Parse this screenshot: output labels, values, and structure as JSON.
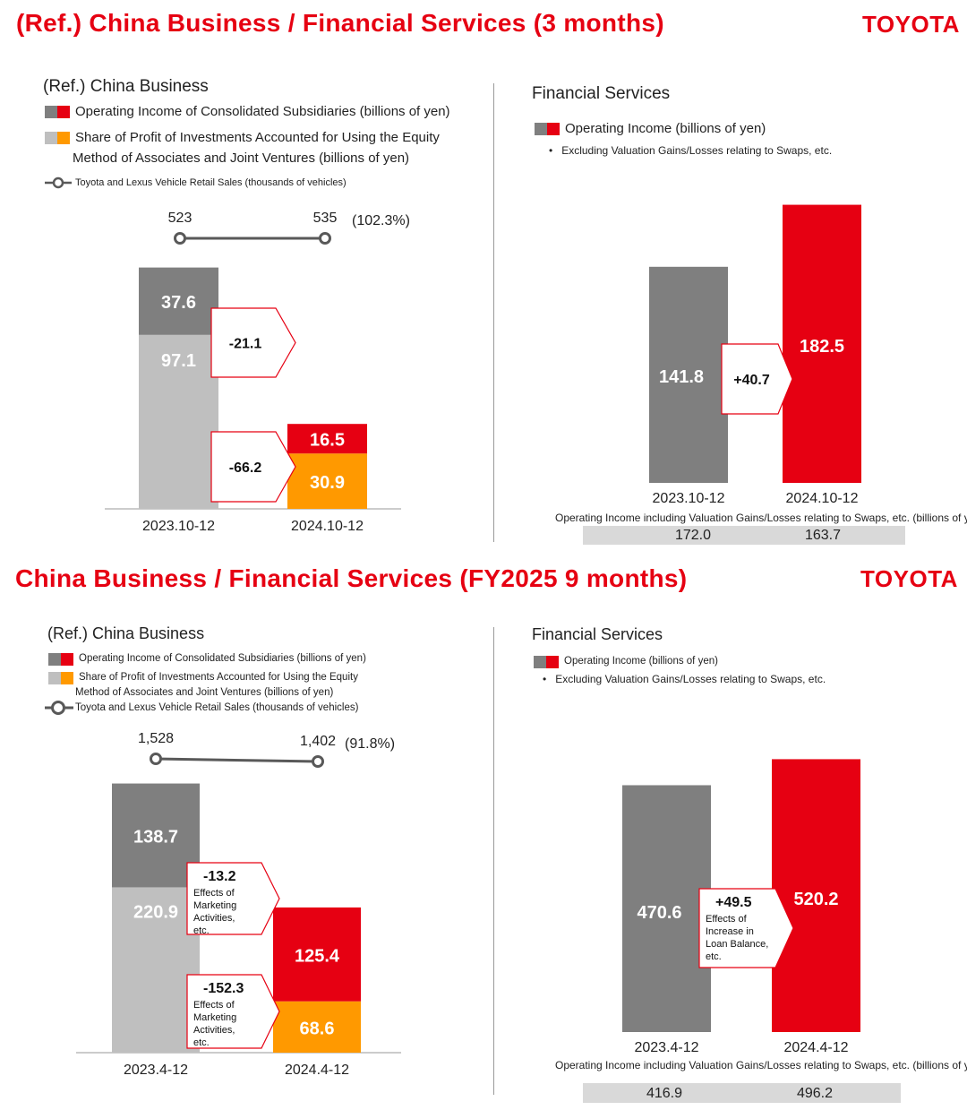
{
  "top": {
    "title": "(Ref.) China Business / Financial Services (3 months)",
    "brand": "TOYOTA",
    "china": {
      "title": "(Ref.) China Business",
      "legend": {
        "operating_income": "Operating Income of Consolidated Subsidiaries (billions of yen)",
        "equity_share_l1": "Share of Profit of Investments Accounted for Using the Equity",
        "equity_share_l2": "Method of Associates and Joint Ventures (billions of yen)",
        "retail_sales": "Toyota and Lexus Vehicle Retail Sales (thousands of vehicles)"
      }
    },
    "fs": {
      "title": "Financial Services",
      "legend": "Operating Income (billions of yen)",
      "bullet": "Excluding Valuation Gains/Losses relating to Swaps, etc.",
      "note": "Operating Income including Valuation Gains/Losses relating to Swaps, etc.  (billions of yen)",
      "table": [
        "172.0",
        "163.7"
      ]
    }
  },
  "bottom": {
    "title": "China Business / Financial Services (FY2025 9 months)",
    "brand": "TOYOTA",
    "china": {
      "title": "(Ref.) China Business",
      "legend": {
        "operating_income": "Operating Income of Consolidated Subsidiaries (billions of yen)",
        "equity_share_l1": "Share of Profit of Investments Accounted for Using the Equity",
        "equity_share_l2": "Method of Associates and Joint Ventures (billions of yen)",
        "retail_sales": "Toyota and Lexus Vehicle Retail Sales (thousands of vehicles)"
      }
    },
    "fs": {
      "title": "Financial Services",
      "legend": "Operating Income (billions of yen)",
      "bullet": "Excluding Valuation Gains/Losses relating to Swaps, etc.",
      "note": "Operating Income including Valuation Gains/Losses relating to Swaps, etc. (billions of yen)",
      "table": [
        "416.9",
        "496.2"
      ]
    }
  },
  "colors": {
    "red": "#e60012",
    "dark_gray": "#7f7f7f",
    "light_gray": "#bfbfbf",
    "orange": "#ff9900",
    "line": "#595959",
    "table_bg": "#d9d9d9"
  },
  "chart_data": [
    {
      "id": "china_3m",
      "type": "bar",
      "stacked": true,
      "categories": [
        "2023.10-12",
        "2024.10-12"
      ],
      "series": [
        {
          "name": "Share of Profit of Investments Accounted for Using the Equity Method of Associates and Joint Ventures (billions of yen)",
          "values": [
            97.1,
            30.9
          ],
          "labels": [
            "97.1",
            "30.9"
          ]
        },
        {
          "name": "Operating Income of Consolidated Subsidiaries (billions of yen)",
          "values": [
            37.6,
            16.5
          ],
          "labels": [
            "37.6",
            "16.5"
          ]
        }
      ],
      "line": {
        "name": "Toyota and Lexus Vehicle Retail Sales (thousands of vehicles)",
        "values": [
          523,
          535
        ],
        "labels": [
          "523",
          "535"
        ],
        "ratio": "(102.3%)"
      },
      "callouts": [
        {
          "text": "-21.1",
          "sub": ""
        },
        {
          "text": "-66.2",
          "sub": ""
        }
      ]
    },
    {
      "id": "fs_3m",
      "type": "bar",
      "categories": [
        "2023.10-12",
        "2024.10-12"
      ],
      "series": [
        {
          "name": "Operating Income (billions of yen)",
          "values": [
            141.8,
            182.5
          ],
          "labels": [
            "141.8",
            "182.5"
          ]
        }
      ],
      "callout": {
        "text": "+40.7",
        "sub": ""
      }
    },
    {
      "id": "china_9m",
      "type": "bar",
      "stacked": true,
      "categories": [
        "2023.4-12",
        "2024.4-12"
      ],
      "series": [
        {
          "name": "Share of Profit of Investments Accounted for Using the Equity Method of Associates and Joint Ventures (billions of yen)",
          "values": [
            220.9,
            68.6
          ],
          "labels": [
            "220.9",
            "68.6"
          ]
        },
        {
          "name": "Operating Income of Consolidated Subsidiaries (billions of yen)",
          "values": [
            138.7,
            125.4
          ],
          "labels": [
            "138.7",
            "125.4"
          ]
        }
      ],
      "line": {
        "name": "Toyota and Lexus Vehicle Retail Sales (thousands of vehicles)",
        "values": [
          1528,
          1402
        ],
        "labels": [
          "1,528",
          "1,402"
        ],
        "ratio": "(91.8%)"
      },
      "callouts": [
        {
          "text": "-13.2",
          "sub": "Effects of Marketing Activities, etc."
        },
        {
          "text": "-152.3",
          "sub": "Effects of Marketing Activities, etc."
        }
      ]
    },
    {
      "id": "fs_9m",
      "type": "bar",
      "categories": [
        "2023.4-12",
        "2024.4-12"
      ],
      "series": [
        {
          "name": "Operating Income (billions of yen)",
          "values": [
            470.6,
            520.2
          ],
          "labels": [
            "470.6",
            "520.2"
          ]
        }
      ],
      "callout": {
        "text": "+49.5",
        "sub": "Effects of Increase in Loan Balance, etc."
      }
    }
  ]
}
